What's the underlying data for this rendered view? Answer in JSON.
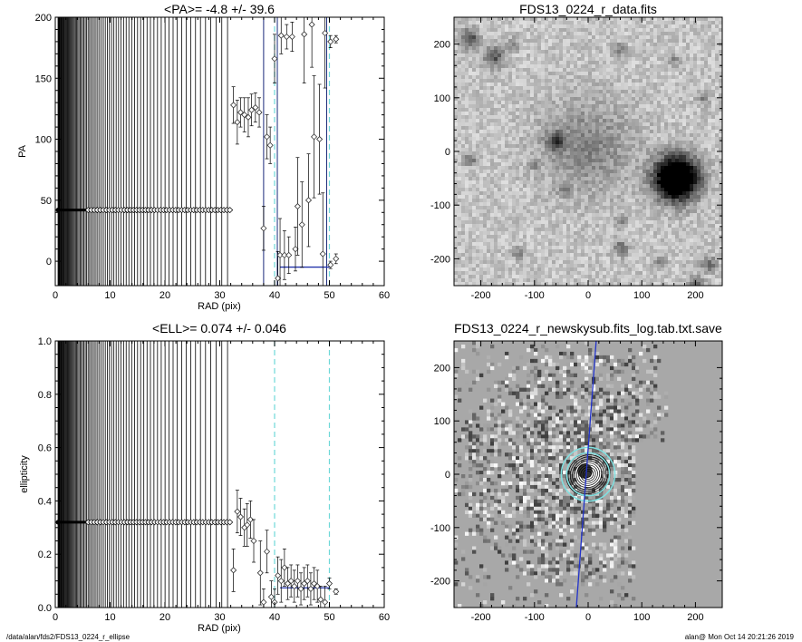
{
  "footer": {
    "path": "/data/alan/fds2/FDS13_0224_r_ellipse",
    "stamp": "alan@  Mon Oct 14 20:21:26 2019"
  },
  "chart_data": [
    {
      "id": "pa",
      "type": "scatter",
      "title": "<PA>=  -4.8 +/-  39.6",
      "xlabel": "RAD (pix)",
      "ylabel": "PA",
      "xlim": [
        0,
        60
      ],
      "ylim": [
        -20,
        200
      ],
      "xticks": [
        0,
        10,
        20,
        30,
        40,
        50,
        60
      ],
      "yticks": [
        0,
        50,
        100,
        150,
        200
      ],
      "dense_line_value": 42,
      "dense_line_range": [
        0.5,
        32
      ],
      "vlines_dark": [
        38,
        40.5,
        49.5
      ],
      "vlines_cyan": [
        40,
        50
      ],
      "mean_segment": {
        "x": [
          41,
          50
        ],
        "y": -4.8
      },
      "points": [
        {
          "x": 32.5,
          "y": 128,
          "e": 15
        },
        {
          "x": 33.2,
          "y": 114,
          "e": 18
        },
        {
          "x": 33.8,
          "y": 122,
          "e": 12
        },
        {
          "x": 34.5,
          "y": 120,
          "e": 14
        },
        {
          "x": 35.2,
          "y": 118,
          "e": 16
        },
        {
          "x": 35.8,
          "y": 124,
          "e": 13
        },
        {
          "x": 36.5,
          "y": 126,
          "e": 12
        },
        {
          "x": 37.2,
          "y": 122,
          "e": 12
        },
        {
          "x": 38.0,
          "y": 27,
          "e": 18
        },
        {
          "x": 38.6,
          "y": 102,
          "e": 18
        },
        {
          "x": 39.2,
          "y": 95,
          "e": 15
        },
        {
          "x": 40.0,
          "y": 166,
          "e": 20
        },
        {
          "x": 40.6,
          "y": -14,
          "e": 22
        },
        {
          "x": 41.0,
          "y": 5,
          "e": 30
        },
        {
          "x": 41.2,
          "y": 185,
          "e": 15
        },
        {
          "x": 41.8,
          "y": 5,
          "e": 20
        },
        {
          "x": 42.2,
          "y": 184,
          "e": 10
        },
        {
          "x": 42.6,
          "y": 5,
          "e": 15
        },
        {
          "x": 43.2,
          "y": 184,
          "e": 12
        },
        {
          "x": 43.8,
          "y": 10,
          "e": 18
        },
        {
          "x": 44.2,
          "y": 45,
          "e": 40
        },
        {
          "x": 45.0,
          "y": 30,
          "e": 35
        },
        {
          "x": 45.4,
          "y": 186,
          "e": 40
        },
        {
          "x": 46.2,
          "y": 50,
          "e": 38
        },
        {
          "x": 46.8,
          "y": 194,
          "e": 35
        },
        {
          "x": 47.2,
          "y": 102,
          "e": 50
        },
        {
          "x": 48.2,
          "y": 100,
          "e": 45
        },
        {
          "x": 48.8,
          "y": 6,
          "e": 50
        },
        {
          "x": 49.2,
          "y": 187,
          "e": 45
        },
        {
          "x": 50.2,
          "y": 180,
          "e": 5
        },
        {
          "x": 50.2,
          "y": -3,
          "e": 3
        },
        {
          "x": 51.2,
          "y": 182,
          "e": 3
        },
        {
          "x": 51.2,
          "y": 2,
          "e": 4
        }
      ]
    },
    {
      "id": "ell",
      "type": "scatter",
      "title": "<ELL>= 0.074 +/-  0.046",
      "xlabel": "RAD (pix)",
      "ylabel": "ellipticity",
      "xlim": [
        0,
        60
      ],
      "ylim": [
        0,
        1
      ],
      "xticks": [
        0,
        10,
        20,
        30,
        40,
        50,
        60
      ],
      "yticks": [
        0.0,
        0.2,
        0.4,
        0.6,
        0.8,
        1.0
      ],
      "dense_line_value": 0.32,
      "dense_line_range": [
        0.5,
        32
      ],
      "vlines_dark": [],
      "vlines_cyan": [
        40,
        50
      ],
      "mean_segment": {
        "x": [
          41,
          50
        ],
        "y": 0.074
      },
      "points": [
        {
          "x": 32.5,
          "y": 0.14,
          "e": 0.08
        },
        {
          "x": 33.2,
          "y": 0.36,
          "e": 0.08
        },
        {
          "x": 33.8,
          "y": 0.34,
          "e": 0.07
        },
        {
          "x": 34.5,
          "y": 0.3,
          "e": 0.07
        },
        {
          "x": 35.0,
          "y": 0.31,
          "e": 0.08
        },
        {
          "x": 35.6,
          "y": 0.33,
          "e": 0.07
        },
        {
          "x": 36.2,
          "y": 0.25,
          "e": 0.08
        },
        {
          "x": 37.4,
          "y": 0.13,
          "e": 0.12
        },
        {
          "x": 38.0,
          "y": 0.02,
          "e": 0.05
        },
        {
          "x": 38.6,
          "y": 0.21,
          "e": 0.08
        },
        {
          "x": 39.4,
          "y": 0.04,
          "e": 0.06
        },
        {
          "x": 40.0,
          "y": 0.02,
          "e": 0.05
        },
        {
          "x": 40.6,
          "y": 0.12,
          "e": 0.07
        },
        {
          "x": 41.2,
          "y": 0.1,
          "e": 0.08
        },
        {
          "x": 41.8,
          "y": 0.15,
          "e": 0.07
        },
        {
          "x": 42.4,
          "y": 0.09,
          "e": 0.06
        },
        {
          "x": 43.0,
          "y": 0.1,
          "e": 0.06
        },
        {
          "x": 43.6,
          "y": 0.08,
          "e": 0.06
        },
        {
          "x": 44.2,
          "y": 0.1,
          "e": 0.06
        },
        {
          "x": 44.8,
          "y": 0.07,
          "e": 0.06
        },
        {
          "x": 45.4,
          "y": 0.09,
          "e": 0.06
        },
        {
          "x": 46.0,
          "y": 0.1,
          "e": 0.06
        },
        {
          "x": 46.6,
          "y": 0.07,
          "e": 0.06
        },
        {
          "x": 47.2,
          "y": 0.09,
          "e": 0.06
        },
        {
          "x": 47.8,
          "y": 0.08,
          "e": 0.06
        },
        {
          "x": 48.4,
          "y": 0.03,
          "e": 0.05
        },
        {
          "x": 49.2,
          "y": 0.02,
          "e": 0.06
        },
        {
          "x": 50.0,
          "y": 0.09,
          "e": 0.02
        },
        {
          "x": 51.2,
          "y": 0.06,
          "e": 0.01
        }
      ]
    },
    {
      "id": "data-image",
      "type": "heatmap",
      "title": "FDS13_0224_r_data.fits",
      "xlim": [
        -250,
        250
      ],
      "ylim": [
        -250,
        250
      ],
      "xticks": [
        -200,
        -100,
        0,
        100,
        200
      ],
      "yticks": [
        -200,
        -100,
        0,
        100,
        200
      ],
      "sources": [
        {
          "x": 165,
          "y": -50,
          "r": 28,
          "peak": 1.0
        },
        {
          "x": 0,
          "y": 10,
          "r": 60,
          "peak": 0.18
        },
        {
          "x": -60,
          "y": 20,
          "r": 12,
          "peak": 0.35
        },
        {
          "x": -175,
          "y": 175,
          "r": 14,
          "peak": 0.3
        },
        {
          "x": -220,
          "y": 210,
          "r": 12,
          "peak": 0.35
        },
        {
          "x": -140,
          "y": 200,
          "r": 8,
          "peak": 0.2
        },
        {
          "x": -220,
          "y": -15,
          "r": 8,
          "peak": 0.25
        },
        {
          "x": 60,
          "y": -180,
          "r": 10,
          "peak": 0.25
        },
        {
          "x": 215,
          "y": 100,
          "r": 8,
          "peak": 0.2
        },
        {
          "x": 60,
          "y": 190,
          "r": 8,
          "peak": 0.2
        },
        {
          "x": -45,
          "y": -70,
          "r": 8,
          "peak": 0.2
        },
        {
          "x": 60,
          "y": -130,
          "r": 8,
          "peak": 0.2
        },
        {
          "x": -130,
          "y": -190,
          "r": 8,
          "peak": 0.2
        },
        {
          "x": 225,
          "y": -210,
          "r": 10,
          "peak": 0.25
        },
        {
          "x": 200,
          "y": -245,
          "r": 10,
          "peak": 0.25
        },
        {
          "x": 135,
          "y": -205,
          "r": 8,
          "peak": 0.2
        },
        {
          "x": -100,
          "y": -25,
          "r": 6,
          "peak": 0.15
        },
        {
          "x": 160,
          "y": 170,
          "r": 8,
          "peak": 0.15
        }
      ]
    },
    {
      "id": "residual-image",
      "type": "heatmap",
      "title": "FDS13_0224_r_newskysub.fits_log.tab.txt.save",
      "xlim": [
        -250,
        250
      ],
      "ylim": [
        -250,
        250
      ],
      "xticks": [
        -200,
        -100,
        0,
        100,
        200
      ],
      "yticks": [
        -200,
        -100,
        0,
        100,
        200
      ],
      "line": {
        "x1": 15,
        "y1": 250,
        "x2": -22,
        "y2": -250
      },
      "ellipse_center": [
        0,
        0
      ],
      "ellipse_radii": [
        6,
        10,
        14,
        18,
        22,
        26,
        30,
        34,
        38,
        42
      ],
      "cyan_radii": [
        40,
        50
      ]
    }
  ]
}
